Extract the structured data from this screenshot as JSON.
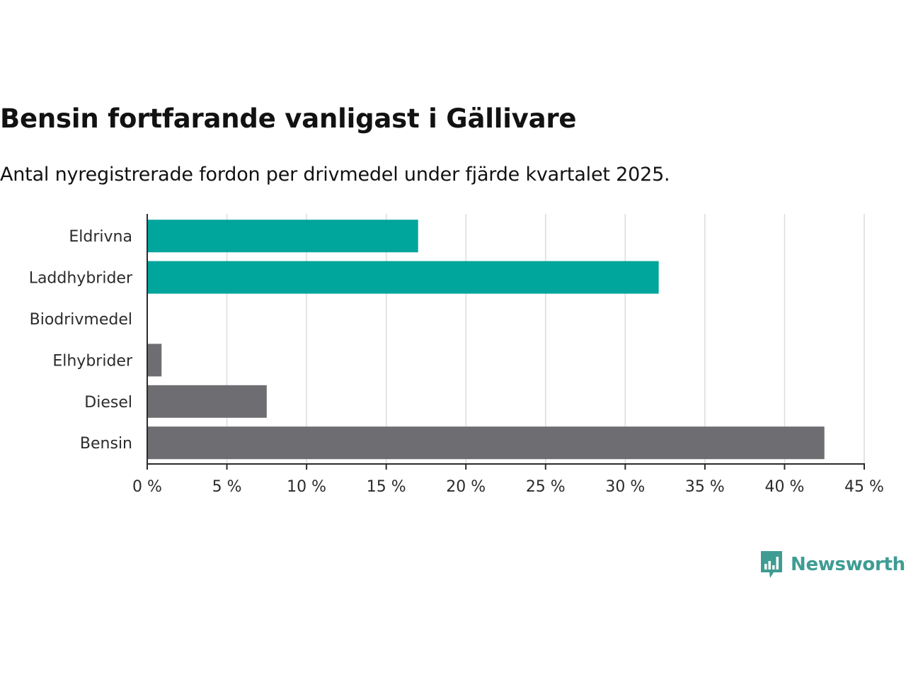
{
  "title": "Bensin fortfarande vanligast i Gällivare",
  "subtitle": "Antal nyregistrerade fordon per drivmedel under fjärde kvartalet 2025.",
  "brand": {
    "name": "Newsworthy",
    "color": "#3e9c93",
    "icon": "bar-chart-speech-bubble-icon"
  },
  "chart_data": {
    "type": "bar",
    "orientation": "horizontal",
    "categories": [
      "Eldrivna",
      "Laddhybrider",
      "Biodrivmedel",
      "Elhybrider",
      "Diesel",
      "Bensin"
    ],
    "values": [
      17.0,
      32.1,
      0,
      0.9,
      7.5,
      42.5
    ],
    "colors": [
      "#00a59b",
      "#00a59b",
      "#6e6d72",
      "#6e6d72",
      "#6e6d72",
      "#6e6d72"
    ],
    "xlim": [
      0,
      45
    ],
    "xticks": [
      0,
      5,
      10,
      15,
      20,
      25,
      30,
      35,
      40,
      45
    ],
    "xtick_labels": [
      "0 %",
      "5 %",
      "10 %",
      "15 %",
      "20 %",
      "25 %",
      "30 %",
      "35 %",
      "40 %",
      "45 %"
    ],
    "grid": "vertical",
    "xlabel": "",
    "ylabel": ""
  }
}
